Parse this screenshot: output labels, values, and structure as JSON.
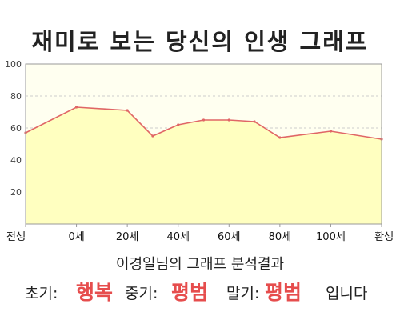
{
  "title": "재미로 보는 당신의 인생 그래프",
  "subtitle": "이경일님의 그래프 분석결과",
  "result": {
    "early_label": "초기:",
    "early_value": "행복",
    "mid_label": "중기:",
    "mid_value": "평범",
    "late_label": "말기:",
    "late_value": "평범",
    "suffix": "입니다"
  },
  "colors": {
    "line": "#e06666",
    "fill": "#ffffc0",
    "plot_bg": "#fffff0",
    "accent": "#e64d4d"
  },
  "chart_data": {
    "type": "area",
    "categories": [
      "전생",
      "0세",
      "20세",
      "40세",
      "60세",
      "80세",
      "100세",
      "환생"
    ],
    "x": [
      -20,
      0,
      20,
      30,
      40,
      50,
      60,
      70,
      80,
      100,
      120
    ],
    "values": [
      57,
      73,
      71,
      55,
      62,
      65,
      65,
      64,
      54,
      58,
      53
    ],
    "ylim": [
      0,
      100
    ],
    "yticks": [
      20,
      40,
      60,
      80,
      100
    ],
    "xlim": [
      -20,
      120
    ],
    "grid": true
  }
}
